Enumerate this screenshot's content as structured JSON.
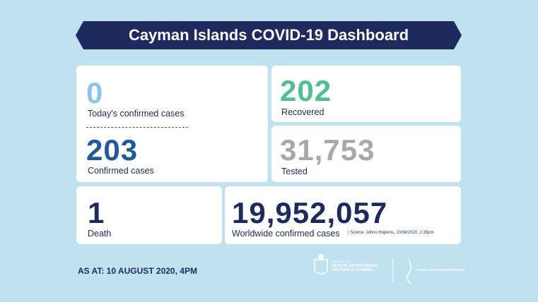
{
  "header": {
    "title": "Cayman Islands COVID-19 Dashboard"
  },
  "cards": [
    {
      "value": "0",
      "label": "Today's confirmed cases"
    },
    {
      "value": "203",
      "label": "Confirmed cases"
    },
    {
      "value": "202",
      "label": "Recovered"
    },
    {
      "value": "31,753",
      "label": "Tested"
    },
    {
      "value": "1",
      "label": "Death"
    },
    {
      "value": "19,952,057",
      "label": "Worldwide confirmed cases",
      "note": "| Source: Johns Hopkins, 10/08/2020, 2:35pm"
    }
  ],
  "footer": {
    "as_at": "AS AT: 10 AUGUST 2020, 4PM",
    "logos": [
      {
        "line1": "MINISTRY OF",
        "line2": "HEALTH, ENVIRONMENT, CULTURE & HOUSING"
      },
      {
        "line1": "PUBLIC HEALTH DEPARTMENT"
      }
    ]
  }
}
